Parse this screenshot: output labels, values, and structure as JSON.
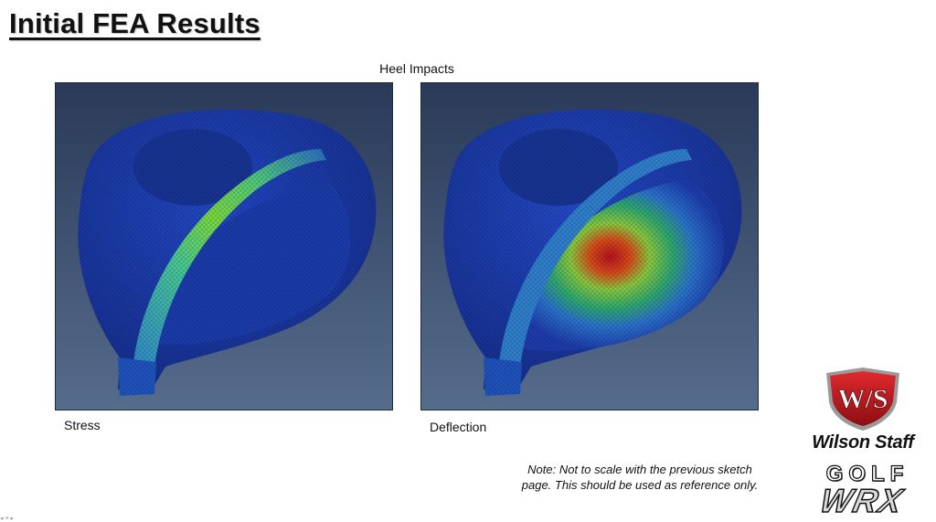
{
  "slide": {
    "title": "Initial FEA Results",
    "subtitle": "Heel Impacts",
    "panels": [
      {
        "caption": "Stress"
      },
      {
        "caption": "Deflection"
      }
    ],
    "note": "Note: Not to scale with the previous sketch page. This should be used as reference only."
  },
  "branding": {
    "monogram": "W/S",
    "brand_name": "Wilson Staff",
    "watermark_top": "GOLF",
    "watermark_bottom": "WRX"
  },
  "nav": {
    "icons": [
      "prev-arrow-icon",
      "menu-icon",
      "next-arrow-icon"
    ],
    "glyphs": "◂ ≡ ▸"
  },
  "colors": {
    "panel_bg_top": "#2a3a58",
    "panel_bg_bottom": "#566c8c",
    "mesh_blue": "#1e3fb0",
    "stress_green": "#6ed23c",
    "deflection_red": "#c8141a",
    "logo_red": "#c4161c"
  }
}
